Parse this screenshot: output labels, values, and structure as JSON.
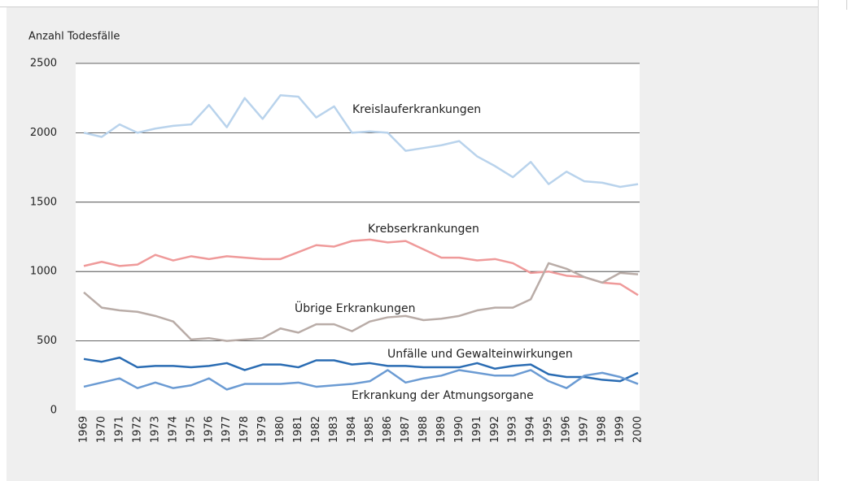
{
  "chart_data": {
    "type": "line",
    "y_label": "Anzahl Todesfälle",
    "categories": [
      "1969",
      "1970",
      "1971",
      "1972",
      "1973",
      "1974",
      "1975",
      "1976",
      "1977",
      "1978",
      "1979",
      "1980",
      "1981",
      "1982",
      "1983",
      "1984",
      "1985",
      "1986",
      "1987",
      "1988",
      "1989",
      "1990",
      "1991",
      "1992",
      "1993",
      "1994",
      "1995",
      "1996",
      "1997",
      "1998",
      "1999",
      "2000"
    ],
    "series": [
      {
        "name": "Kreislauferkrankungen",
        "color": "#b9d3ec",
        "values": [
          2000,
          1970,
          2060,
          2000,
          2030,
          2050,
          2060,
          2200,
          2040,
          2250,
          2100,
          2270,
          2260,
          2110,
          2190,
          2000,
          2010,
          2000,
          1870,
          1890,
          1910,
          1940,
          1830,
          1760,
          1680,
          1790,
          1630,
          1720,
          1650,
          1640,
          1610,
          1630
        ]
      },
      {
        "name": "Krebserkrankungen",
        "color": "#ef9a9a",
        "values": [
          1040,
          1070,
          1040,
          1050,
          1120,
          1080,
          1110,
          1090,
          1110,
          1100,
          1090,
          1090,
          1140,
          1190,
          1180,
          1220,
          1230,
          1210,
          1220,
          1160,
          1100,
          1100,
          1080,
          1090,
          1060,
          990,
          1000,
          970,
          960,
          920,
          910,
          830
        ]
      },
      {
        "name": "Übrige Erkrankungen",
        "color": "#b9aca7",
        "values": [
          850,
          740,
          720,
          710,
          680,
          640,
          510,
          520,
          500,
          510,
          520,
          590,
          560,
          620,
          620,
          570,
          640,
          670,
          680,
          650,
          660,
          680,
          720,
          740,
          740,
          800,
          1060,
          1020,
          960,
          920,
          990,
          980
        ]
      },
      {
        "name": "Unfälle und Gewalteinwirkungen",
        "color": "#2a6cb3",
        "values": [
          370,
          350,
          380,
          310,
          320,
          320,
          310,
          320,
          340,
          290,
          330,
          330,
          310,
          360,
          360,
          330,
          340,
          320,
          320,
          310,
          310,
          310,
          340,
          300,
          320,
          330,
          260,
          240,
          240,
          220,
          210,
          270
        ]
      },
      {
        "name": "Erkrankung der Atmungsorgane",
        "color": "#6b9bd3",
        "values": [
          170,
          200,
          230,
          160,
          200,
          160,
          180,
          230,
          150,
          190,
          190,
          190,
          200,
          170,
          180,
          190,
          210,
          290,
          200,
          230,
          250,
          290,
          270,
          250,
          250,
          290,
          210,
          160,
          250,
          270,
          240,
          190
        ]
      }
    ],
    "ylim": [
      0,
      2500
    ],
    "yticks": [
      0,
      500,
      1000,
      1500,
      2000,
      2500
    ],
    "grid": true
  }
}
